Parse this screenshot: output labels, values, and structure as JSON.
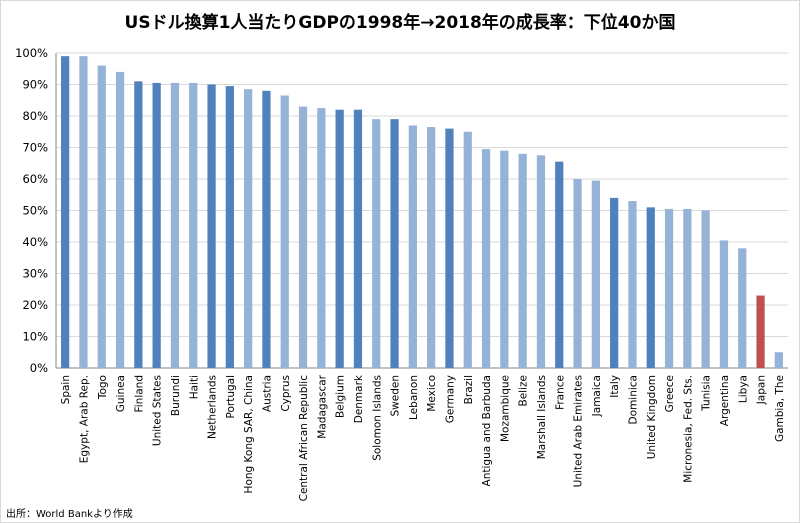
{
  "chart_data": {
    "type": "bar",
    "title": "USドル換算1人当たりGDPの1998年→2018年の成長率：下位40か国",
    "source": "出所：World Bankより作成",
    "ylabel": "",
    "xlabel": "",
    "ylim": [
      0,
      100
    ],
    "yticks": [
      "0%",
      "10%",
      "20%",
      "30%",
      "40%",
      "50%",
      "60%",
      "70%",
      "80%",
      "90%",
      "100%"
    ],
    "grid": true,
    "colors": {
      "highlight": "#4f81bd",
      "normal": "#95b3d7",
      "japan": "#c0504d",
      "grid": "#d9d9d9"
    },
    "categories": [
      "Spain",
      "Egypt, Arab Rep.",
      "Togo",
      "Guinea",
      "Finland",
      "United States",
      "Burundi",
      "Haiti",
      "Netherlands",
      "Portugal",
      "Hong Kong SAR, China",
      "Austria",
      "Cyprus",
      "Central African Republic",
      "Madagascar",
      "Belgium",
      "Denmark",
      "Solomon Islands",
      "Sweden",
      "Lebanon",
      "Mexico",
      "Germany",
      "Brazil",
      "Antigua and Barbuda",
      "Mozambique",
      "Belize",
      "Marshall Islands",
      "France",
      "United Arab Emirates",
      "Jamaica",
      "Italy",
      "Dominica",
      "United Kingdom",
      "Greece",
      "Micronesia, Fed. Sts.",
      "Tunisia",
      "Argentina",
      "Libya",
      "Japan",
      "Gambia, The"
    ],
    "values": [
      99,
      99,
      96,
      94,
      91,
      90.5,
      90.5,
      90.5,
      90,
      89.5,
      88.5,
      88,
      86.5,
      83,
      82.5,
      82,
      82,
      79,
      79,
      77,
      76.5,
      76,
      75,
      69.5,
      69,
      68,
      67.5,
      65.5,
      60,
      59.5,
      54,
      53,
      51,
      50.5,
      50.5,
      50,
      40.5,
      38,
      23,
      5
    ],
    "bar_colors": [
      "highlight",
      "normal",
      "normal",
      "normal",
      "highlight",
      "highlight",
      "normal",
      "normal",
      "highlight",
      "highlight",
      "normal",
      "highlight",
      "normal",
      "normal",
      "normal",
      "highlight",
      "highlight",
      "normal",
      "highlight",
      "normal",
      "normal",
      "highlight",
      "normal",
      "normal",
      "normal",
      "normal",
      "normal",
      "highlight",
      "normal",
      "normal",
      "highlight",
      "normal",
      "highlight",
      "normal",
      "normal",
      "normal",
      "normal",
      "normal",
      "japan",
      "normal"
    ]
  }
}
